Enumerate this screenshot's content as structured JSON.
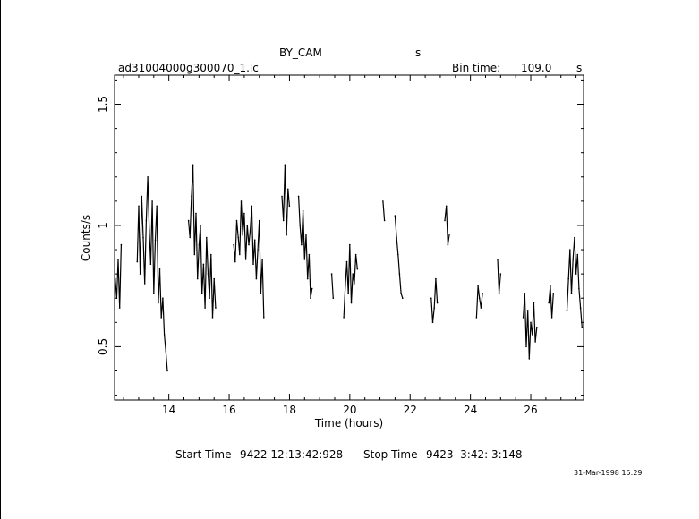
{
  "header": {
    "object_name": "BY_CAM",
    "unit_s_top": "s",
    "file_name": "ad31004000g300070_1.lc",
    "bin_time_label": "Bin time:",
    "bin_time_value": "109.0",
    "bin_time_unit": "s"
  },
  "footer": {
    "start_label": "Start Time",
    "start_value": "9422 12:13:42:928",
    "stop_label": "Stop Time",
    "stop_value": "9423  3:42: 3:148",
    "timestamp": "31-Mar-1998 15:29"
  },
  "chart_data": {
    "type": "line",
    "xlabel": "Time (hours)",
    "ylabel": "Counts/s",
    "xlim": [
      12.2,
      27.75
    ],
    "ylim": [
      0.28,
      1.62
    ],
    "xticks": [
      14,
      16,
      18,
      20,
      22,
      24,
      26
    ],
    "yticks": [
      0.5,
      1,
      1.5
    ],
    "xtick_labels": [
      "14",
      "16",
      "18",
      "20",
      "22",
      "24",
      "26"
    ],
    "ytick_labels": [
      "0.5",
      "1",
      "1.5"
    ],
    "segments": [
      {
        "x": [
          12.22,
          12.27,
          12.32,
          12.37,
          12.42
        ],
        "y": [
          0.78,
          0.7,
          0.86,
          0.66,
          0.92
        ]
      },
      {
        "x": [
          12.95,
          13.0,
          13.05,
          13.1,
          13.15,
          13.2,
          13.25,
          13.3,
          13.35,
          13.4,
          13.45,
          13.5,
          13.55,
          13.6,
          13.65,
          13.7,
          13.75,
          13.8,
          13.85,
          13.9,
          13.95
        ],
        "y": [
          0.85,
          1.08,
          0.8,
          1.12,
          0.95,
          0.76,
          1.02,
          1.2,
          0.98,
          0.84,
          1.1,
          0.72,
          0.94,
          1.08,
          0.68,
          0.82,
          0.62,
          0.7,
          0.55,
          0.48,
          0.4
        ]
      },
      {
        "x": [
          14.65,
          14.7,
          14.75,
          14.8,
          14.85,
          14.9,
          14.95,
          15.0,
          15.05,
          15.1,
          15.15,
          15.2,
          15.25,
          15.3,
          15.35,
          15.4,
          15.45,
          15.5,
          15.55
        ],
        "y": [
          1.02,
          0.95,
          1.12,
          1.25,
          0.88,
          1.05,
          0.78,
          0.92,
          1.0,
          0.72,
          0.84,
          0.66,
          0.95,
          0.8,
          0.7,
          0.88,
          0.62,
          0.78,
          0.66
        ]
      },
      {
        "x": [
          16.15,
          16.2,
          16.25,
          16.3,
          16.35,
          16.4,
          16.45,
          16.5,
          16.55,
          16.6,
          16.65,
          16.7,
          16.75,
          16.8,
          16.85,
          16.9,
          16.95,
          17.0,
          17.05,
          17.1,
          17.15
        ],
        "y": [
          0.92,
          0.85,
          1.02,
          0.95,
          0.88,
          1.1,
          0.96,
          1.05,
          0.86,
          1.0,
          0.92,
          0.98,
          1.08,
          0.84,
          0.94,
          0.78,
          0.9,
          1.02,
          0.72,
          0.86,
          0.62
        ]
      },
      {
        "x": [
          17.75,
          17.8,
          17.85,
          17.9,
          17.95,
          18.0
        ],
        "y": [
          1.12,
          1.02,
          1.25,
          0.96,
          1.15,
          1.08
        ]
      },
      {
        "x": [
          18.3,
          18.35,
          18.4,
          18.45,
          18.5,
          18.55,
          18.6,
          18.65,
          18.7,
          18.75
        ],
        "y": [
          1.12,
          1.0,
          0.92,
          1.06,
          0.86,
          0.96,
          0.78,
          0.88,
          0.7,
          0.74
        ]
      },
      {
        "x": [
          19.4,
          19.45
        ],
        "y": [
          0.8,
          0.7
        ]
      },
      {
        "x": [
          19.8,
          19.85,
          19.9,
          19.95,
          20.0,
          20.05,
          20.1,
          20.15,
          20.2,
          20.25
        ],
        "y": [
          0.62,
          0.75,
          0.85,
          0.72,
          0.92,
          0.68,
          0.8,
          0.76,
          0.88,
          0.82
        ]
      },
      {
        "x": [
          21.1,
          21.15
        ],
        "y": [
          1.1,
          1.02
        ]
      },
      {
        "x": [
          21.5,
          21.55,
          21.6,
          21.65,
          21.7,
          21.75
        ],
        "y": [
          1.04,
          0.95,
          0.88,
          0.8,
          0.72,
          0.7
        ]
      },
      {
        "x": [
          22.7,
          22.75,
          22.8,
          22.85,
          22.9
        ],
        "y": [
          0.7,
          0.6,
          0.66,
          0.78,
          0.68
        ]
      },
      {
        "x": [
          23.15,
          23.2,
          23.25,
          23.3
        ],
        "y": [
          1.02,
          1.08,
          0.92,
          0.96
        ]
      },
      {
        "x": [
          24.2,
          24.25,
          24.3,
          24.35,
          24.4
        ],
        "y": [
          0.62,
          0.75,
          0.7,
          0.66,
          0.72
        ]
      },
      {
        "x": [
          24.9,
          24.95,
          25.0
        ],
        "y": [
          0.86,
          0.72,
          0.8
        ]
      },
      {
        "x": [
          25.75,
          25.8,
          25.85,
          25.9,
          25.95,
          26.0,
          26.05,
          26.1,
          26.15,
          26.2
        ],
        "y": [
          0.62,
          0.72,
          0.5,
          0.65,
          0.45,
          0.6,
          0.55,
          0.68,
          0.52,
          0.58
        ]
      },
      {
        "x": [
          26.6,
          26.65,
          26.7,
          26.75
        ],
        "y": [
          0.68,
          0.75,
          0.62,
          0.72
        ]
      },
      {
        "x": [
          27.2,
          27.25,
          27.3,
          27.35,
          27.4,
          27.45,
          27.5,
          27.55,
          27.6,
          27.65,
          27.7
        ],
        "y": [
          0.65,
          0.78,
          0.9,
          0.72,
          0.86,
          0.95,
          0.8,
          0.88,
          0.74,
          0.66,
          0.58
        ]
      }
    ]
  }
}
